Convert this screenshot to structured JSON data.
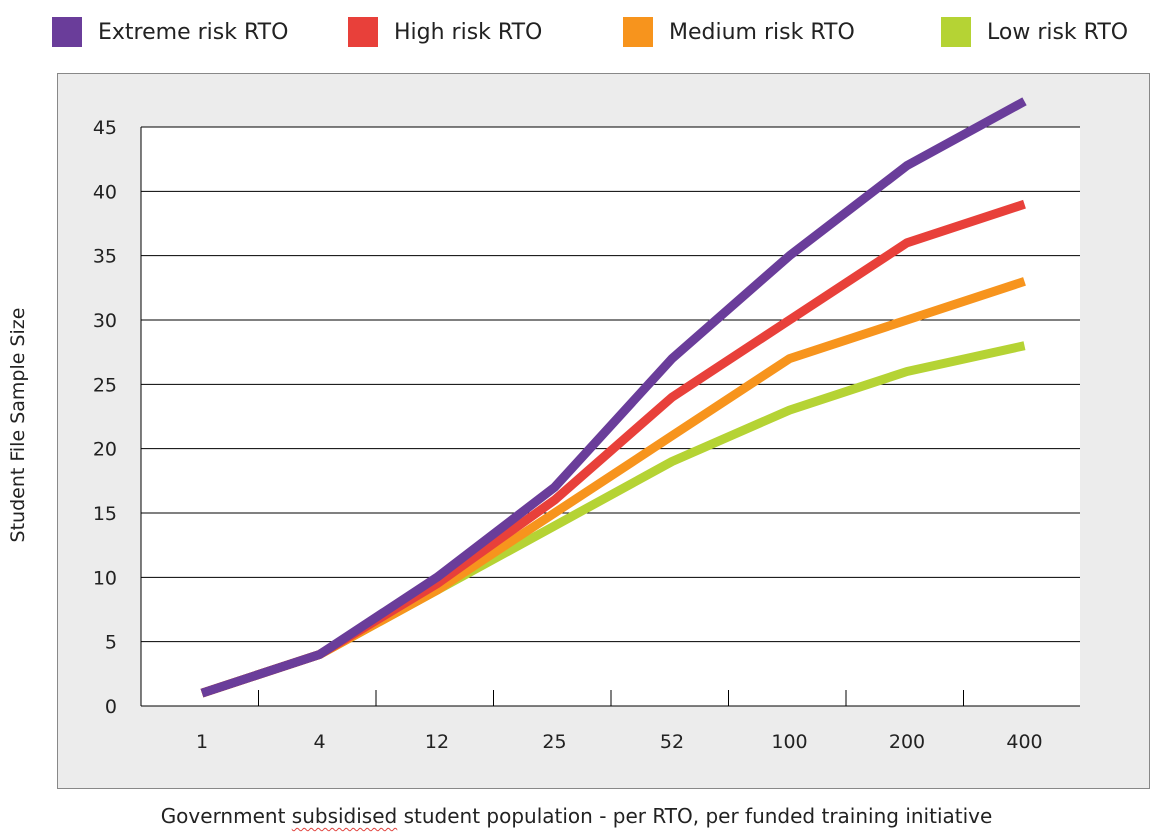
{
  "legend": [
    {
      "label": "Extreme risk RTO",
      "color": "#6a3d9a"
    },
    {
      "label": "High risk RTO",
      "color": "#e8403a"
    },
    {
      "label": "Medium risk RTO",
      "color": "#f7941d"
    },
    {
      "label": "Low risk RTO",
      "color": "#b5d334"
    }
  ],
  "axes": {
    "ylabel": "Student File Sample Size",
    "xlabel_parts": [
      "Government ",
      "subsidised",
      " student population - per RTO, per funded training initiative"
    ]
  },
  "chart_data": {
    "type": "line",
    "title": "",
    "xlabel": "Government subsidised student population - per RTO, per funded training initiative",
    "ylabel": "Student File Sample Size",
    "categories": [
      "1",
      "4",
      "12",
      "25",
      "52",
      "100",
      "200",
      "400"
    ],
    "ylim": [
      0,
      45
    ],
    "yticks": [
      0,
      5,
      10,
      15,
      20,
      25,
      30,
      35,
      40,
      45
    ],
    "grid": "horizontal",
    "legend_position": "top",
    "series": [
      {
        "name": "Low risk RTO",
        "color": "#b5d334",
        "values": [
          1,
          4,
          9,
          14,
          19,
          23,
          26,
          28
        ]
      },
      {
        "name": "Medium risk RTO",
        "color": "#f7941d",
        "values": [
          1,
          4,
          9,
          15,
          21,
          27,
          30,
          33
        ]
      },
      {
        "name": "High risk RTO",
        "color": "#e8403a",
        "values": [
          1,
          4,
          9.5,
          16,
          24,
          30,
          36,
          39
        ]
      },
      {
        "name": "Extreme risk RTO",
        "color": "#6a3d9a",
        "values": [
          1,
          4,
          10,
          17,
          27,
          35,
          42,
          47
        ]
      }
    ]
  }
}
